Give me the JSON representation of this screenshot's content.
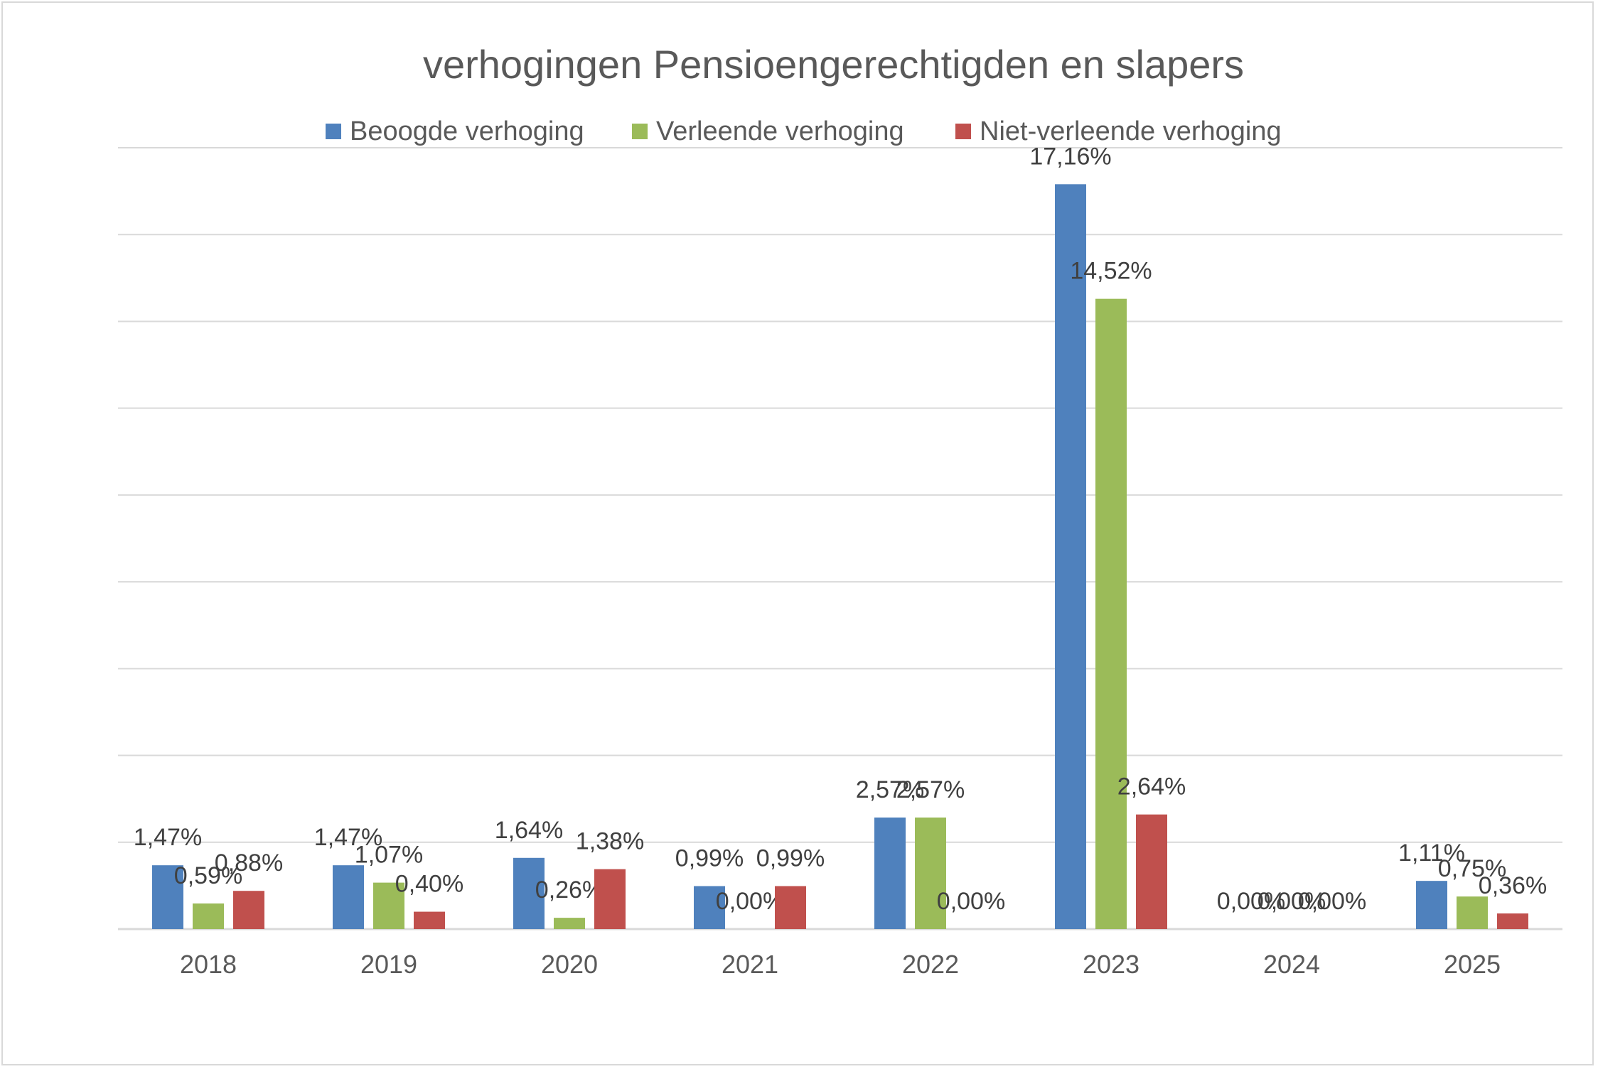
{
  "chart_data": {
    "type": "bar",
    "title": "verhogingen Pensioengerechtigden en slapers",
    "categories": [
      "2018",
      "2019",
      "2020",
      "2021",
      "2022",
      "2023",
      "2024",
      "2025"
    ],
    "series": [
      {
        "name": "Beoogde verhoging",
        "color": "#4f81bd",
        "values": [
          1.47,
          1.47,
          1.64,
          0.99,
          2.57,
          17.16,
          0.0,
          1.11
        ],
        "labels": [
          "1,47%",
          "1,47%",
          "1,64%",
          "0,99%",
          "2,57%",
          "17,16%",
          "0,00%",
          "1,11%"
        ]
      },
      {
        "name": "Verleende verhoging",
        "color": "#9bbb59",
        "values": [
          0.59,
          1.07,
          0.26,
          0.0,
          2.57,
          14.52,
          0.0,
          0.75
        ],
        "labels": [
          "0,59%",
          "1,07%",
          "0,26%",
          "0,00%",
          "2,57%",
          "14,52%",
          "0,00%",
          "0,75%"
        ]
      },
      {
        "name": "Niet-verleende verhoging",
        "color": "#c0504d",
        "values": [
          0.88,
          0.4,
          1.38,
          0.99,
          0.0,
          2.64,
          0.0,
          0.36
        ],
        "labels": [
          "0,88%",
          "0,40%",
          "1,38%",
          "0,99%",
          "0,00%",
          "2,64%",
          "0,00%",
          "0,36%"
        ]
      }
    ],
    "ylim": [
      0,
      18
    ],
    "y_gridlines": [
      0,
      2,
      4,
      6,
      8,
      10,
      12,
      14,
      16,
      18
    ],
    "grid": true,
    "y_axis_labels_visible": false,
    "legend_position": "top",
    "colors": {
      "gridline": "#d9d9d9",
      "axis_text": "#595959",
      "label_text": "#404040"
    }
  }
}
